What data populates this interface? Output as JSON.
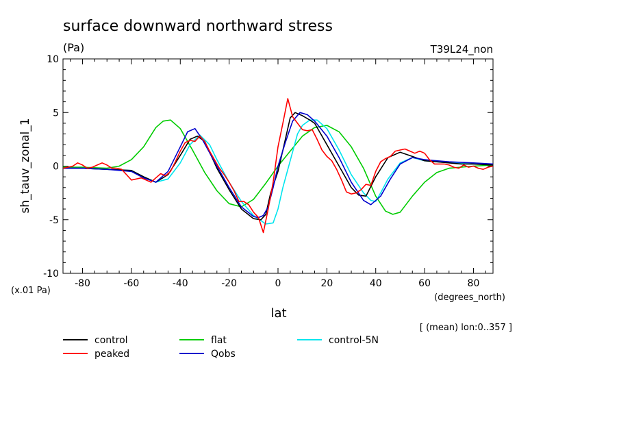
{
  "chart_data": {
    "type": "line",
    "title": "surface downward northward stress",
    "units": "(Pa)",
    "run_label": "T39L24_non",
    "scale_note": "(x.01 Pa)",
    "ylabel": "sh_tauv_zonal_1",
    "xlabel": "lat",
    "x_unit_label": "(degrees_north)",
    "footnote": "[ (mean) lon:0..357 ]",
    "xlim": [
      -88,
      88
    ],
    "ylim": [
      -10,
      10
    ],
    "x_ticks": [
      -80,
      -60,
      -40,
      -20,
      0,
      20,
      40,
      60,
      80
    ],
    "x_tick_labels": [
      "-80",
      "-60",
      "-40",
      "-20",
      "0",
      "20",
      "40",
      "60",
      "80"
    ],
    "y_ticks": [
      -10,
      -5,
      0,
      5,
      10
    ],
    "y_tick_labels": [
      "-10",
      "-5",
      "0",
      "5",
      "10"
    ],
    "grid": false,
    "legend_position": "bottom",
    "series": [
      {
        "name": "control",
        "color": "#000000",
        "x": [
          -88,
          -80,
          -70,
          -60,
          -55,
          -50,
          -45,
          -40,
          -36,
          -33,
          -30,
          -25,
          -20,
          -15,
          -10,
          -7,
          -5,
          -3,
          0,
          3,
          5,
          7,
          10,
          13,
          15,
          20,
          25,
          30,
          33,
          36,
          40,
          45,
          50,
          55,
          60,
          65,
          70,
          75,
          80,
          88
        ],
        "y": [
          -0.2,
          -0.2,
          -0.3,
          -0.4,
          -1.0,
          -1.5,
          -0.8,
          1.0,
          2.5,
          2.8,
          2.3,
          -0.2,
          -2.2,
          -4.0,
          -4.9,
          -5.0,
          -4.5,
          -2.5,
          -0.5,
          2.5,
          4.5,
          5.0,
          4.7,
          4.3,
          4.0,
          2.0,
          0.0,
          -2.0,
          -2.7,
          -2.8,
          -1.0,
          0.8,
          1.3,
          0.9,
          0.5,
          0.4,
          0.3,
          0.2,
          0.2,
          0.1
        ]
      },
      {
        "name": "peaked",
        "color": "#ff0000",
        "x": [
          -88,
          -84,
          -82,
          -80,
          -78,
          -76,
          -74,
          -72,
          -70,
          -68,
          -66,
          -64,
          -62,
          -60,
          -58,
          -56,
          -54,
          -52,
          -50,
          -48,
          -46,
          -44,
          -42,
          -40,
          -38,
          -36,
          -34,
          -32,
          -30,
          -28,
          -26,
          -24,
          -22,
          -20,
          -18,
          -16,
          -14,
          -12,
          -10,
          -8,
          -6,
          -4,
          -2,
          0,
          2,
          4,
          6,
          8,
          10,
          12,
          14,
          16,
          18,
          20,
          22,
          24,
          26,
          28,
          30,
          32,
          34,
          36,
          38,
          40,
          42,
          44,
          46,
          48,
          50,
          52,
          54,
          56,
          58,
          60,
          62,
          64,
          66,
          68,
          70,
          72,
          74,
          76,
          78,
          80,
          82,
          84,
          86,
          88
        ],
        "y": [
          -0.2,
          0.0,
          0.3,
          0.1,
          -0.2,
          -0.1,
          0.1,
          0.3,
          0.1,
          -0.2,
          -0.2,
          -0.3,
          -0.8,
          -1.3,
          -1.2,
          -1.1,
          -1.3,
          -1.5,
          -1.1,
          -0.7,
          -0.9,
          -0.5,
          0.4,
          1.4,
          2.2,
          2.4,
          2.3,
          2.8,
          2.3,
          1.4,
          0.6,
          -0.2,
          -0.8,
          -1.5,
          -2.3,
          -3.3,
          -3.3,
          -3.6,
          -4.3,
          -4.8,
          -6.2,
          -4.0,
          -1.5,
          1.8,
          4.0,
          6.3,
          4.6,
          4.0,
          3.4,
          3.3,
          3.4,
          2.5,
          1.5,
          0.9,
          0.5,
          -0.3,
          -1.3,
          -2.4,
          -2.6,
          -2.5,
          -2.2,
          -1.7,
          -1.8,
          -0.5,
          0.4,
          0.7,
          0.9,
          1.4,
          1.5,
          1.6,
          1.4,
          1.2,
          1.4,
          1.2,
          0.6,
          0.2,
          0.2,
          0.2,
          0.1,
          -0.1,
          -0.2,
          0.1,
          -0.1,
          0.0,
          -0.2,
          -0.3,
          -0.1,
          0.0
        ]
      },
      {
        "name": "flat",
        "color": "#00cc00",
        "x": [
          -88,
          -80,
          -70,
          -65,
          -60,
          -55,
          -50,
          -47,
          -44,
          -40,
          -35,
          -30,
          -25,
          -20,
          -15,
          -10,
          -5,
          0,
          5,
          10,
          15,
          20,
          25,
          30,
          35,
          40,
          44,
          47,
          50,
          55,
          60,
          65,
          70,
          80,
          88
        ],
        "y": [
          -0.1,
          -0.1,
          -0.2,
          0.0,
          0.6,
          1.8,
          3.6,
          4.2,
          4.3,
          3.5,
          1.5,
          -0.6,
          -2.3,
          -3.5,
          -3.8,
          -3.1,
          -1.6,
          0.0,
          1.4,
          2.8,
          3.6,
          3.8,
          3.2,
          1.8,
          -0.2,
          -2.8,
          -4.2,
          -4.5,
          -4.3,
          -2.8,
          -1.5,
          -0.6,
          -0.2,
          0.0,
          0.1
        ]
      },
      {
        "name": "Qobs",
        "color": "#0000cc",
        "x": [
          -88,
          -80,
          -70,
          -60,
          -55,
          -50,
          -45,
          -40,
          -37,
          -34,
          -31,
          -25,
          -20,
          -15,
          -10,
          -8,
          -6,
          -4,
          -2,
          0,
          3,
          6,
          9,
          12,
          15,
          20,
          25,
          30,
          35,
          38,
          42,
          46,
          50,
          55,
          60,
          65,
          70,
          80,
          88
        ],
        "y": [
          -0.2,
          -0.2,
          -0.3,
          -0.5,
          -1.1,
          -1.5,
          -0.5,
          1.8,
          3.2,
          3.5,
          2.5,
          0.0,
          -2.0,
          -3.8,
          -4.7,
          -4.8,
          -4.6,
          -3.8,
          -2.0,
          0.0,
          2.2,
          4.2,
          5.0,
          4.8,
          4.2,
          2.8,
          0.8,
          -1.5,
          -3.2,
          -3.6,
          -2.8,
          -1.2,
          0.2,
          0.8,
          0.6,
          0.5,
          0.4,
          0.3,
          0.2
        ]
      },
      {
        "name": "control-5N",
        "color": "#00e5ee",
        "x": [
          -88,
          -80,
          -70,
          -60,
          -55,
          -50,
          -45,
          -40,
          -36,
          -32,
          -28,
          -25,
          -20,
          -15,
          -10,
          -5,
          -2,
          0,
          2,
          5,
          8,
          10,
          13,
          16,
          20,
          25,
          30,
          35,
          38,
          40,
          42,
          45,
          50,
          55,
          60,
          70,
          80,
          88
        ],
        "y": [
          -0.2,
          -0.2,
          -0.3,
          -0.4,
          -1.0,
          -1.5,
          -1.2,
          0.3,
          2.0,
          2.9,
          2.0,
          0.6,
          -1.5,
          -3.3,
          -4.6,
          -5.4,
          -5.3,
          -4.0,
          -2.0,
          0.5,
          3.0,
          3.8,
          4.3,
          4.3,
          3.5,
          1.5,
          -0.8,
          -2.5,
          -3.2,
          -3.3,
          -2.5,
          -1.2,
          0.3,
          0.8,
          0.5,
          0.3,
          0.2,
          0.2
        ]
      }
    ]
  }
}
